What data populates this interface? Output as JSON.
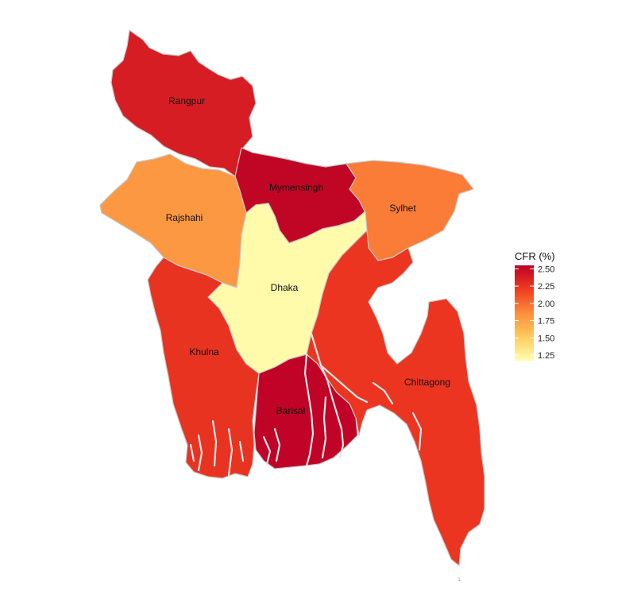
{
  "chart_data": {
    "type": "choropleth",
    "legend": {
      "title": "CFR (%)",
      "range": [
        1.17,
        2.55
      ],
      "ticks": [
        "2.50",
        "2.25",
        "2.00",
        "1.75",
        "1.50",
        "1.25"
      ],
      "tick_values": [
        2.5,
        2.25,
        2.0,
        1.75,
        1.5,
        1.25
      ],
      "colors": [
        "#ffffb2",
        "#fecc5c",
        "#fd8d3c",
        "#f03b20",
        "#bd0026"
      ]
    },
    "divisions": [
      {
        "id": "rangpur",
        "name": "Rangpur",
        "value": 2.38
      },
      {
        "id": "mymensingh",
        "name": "Mymensingh",
        "value": 2.52
      },
      {
        "id": "sylhet",
        "name": "Sylhet",
        "value": 1.93
      },
      {
        "id": "rajshahi",
        "name": "Rajshahi",
        "value": 1.8
      },
      {
        "id": "dhaka",
        "name": "Dhaka",
        "value": 1.2
      },
      {
        "id": "khulna",
        "name": "Khulna",
        "value": 2.25
      },
      {
        "id": "barisal",
        "name": "Barisal",
        "value": 2.53
      },
      {
        "id": "chittagong",
        "name": "Chittagong",
        "value": 2.24
      }
    ]
  },
  "footnote": "1"
}
